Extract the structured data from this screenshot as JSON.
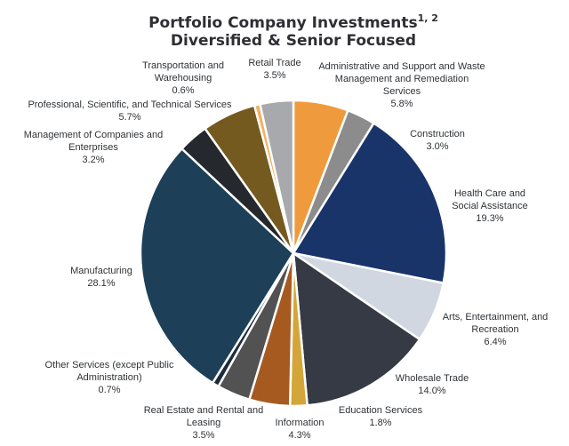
{
  "chart_data": {
    "type": "pie",
    "title_line1": "Portfolio Company Investments",
    "title_sup": "1, 2",
    "title_line2": "Diversified & Senior Focused",
    "slices": [
      {
        "name": "Administrative and Support and Waste Management and Remediation Services",
        "value": 5.8,
        "label": "5.8%",
        "color": "#ef9a3c"
      },
      {
        "name": "Construction",
        "value": 3.0,
        "label": "3.0%",
        "color": "#8c8c8c"
      },
      {
        "name": "Health Care and Social Assistance",
        "value": 19.3,
        "label": "19.3%",
        "color": "#183468"
      },
      {
        "name": "Arts, Entertainment, and Recreation",
        "value": 6.4,
        "label": "6.4%",
        "color": "#d0d7e1"
      },
      {
        "name": "Wholesale Trade",
        "value": 14.0,
        "label": "14.0%",
        "color": "#363a45"
      },
      {
        "name": "Education Services",
        "value": 1.8,
        "label": "1.8%",
        "color": "#d4a63a"
      },
      {
        "name": "Information",
        "value": 4.3,
        "label": "4.3%",
        "color": "#a65a20"
      },
      {
        "name": "Real Estate and Rental and Leasing",
        "value": 3.5,
        "label": "3.5%",
        "color": "#525252"
      },
      {
        "name": "Other Services (except Public Administration)",
        "value": 0.7,
        "label": "0.7%",
        "color": "#1e2b3c"
      },
      {
        "name": "Manufacturing",
        "value": 28.1,
        "label": "28.1%",
        "color": "#1d3f57"
      },
      {
        "name": "Management of Companies and Enterprises",
        "value": 3.2,
        "label": "3.2%",
        "color": "#25282d"
      },
      {
        "name": "Professional, Scientific, and Technical Services",
        "value": 5.7,
        "label": "5.7%",
        "color": "#745a1e"
      },
      {
        "name": "Transportation and Warehousing",
        "value": 0.6,
        "label": "0.6%",
        "color": "#f4b160"
      },
      {
        "name": "Retail Trade",
        "value": 3.5,
        "label": "3.5%",
        "color": "#a7a9ad"
      }
    ],
    "labels": [
      {
        "lines": [
          "Administrative and Support and Waste",
          "Management and Remediation",
          "Services"
        ],
        "pct": "5.8%"
      },
      {
        "lines": [
          "Construction"
        ],
        "pct": "3.0%"
      },
      {
        "lines": [
          "Health Care and",
          "Social Assistance"
        ],
        "pct": "19.3%"
      },
      {
        "lines": [
          "Arts, Entertainment, and",
          "Recreation"
        ],
        "pct": "6.4%"
      },
      {
        "lines": [
          "Wholesale Trade"
        ],
        "pct": "14.0%"
      },
      {
        "lines": [
          "Education Services"
        ],
        "pct": "1.8%"
      },
      {
        "lines": [
          "Information"
        ],
        "pct": "4.3%"
      },
      {
        "lines": [
          "Real Estate and Rental and",
          "Leasing"
        ],
        "pct": "3.5%"
      },
      {
        "lines": [
          "Other Services (except Public",
          "Administration)"
        ],
        "pct": "0.7%"
      },
      {
        "lines": [
          "Manufacturing"
        ],
        "pct": "28.1%"
      },
      {
        "lines": [
          "Management of Companies and",
          "Enterprises"
        ],
        "pct": "3.2%"
      },
      {
        "lines": [
          "Professional, Scientific, and Technical Services"
        ],
        "pct": "5.7%"
      },
      {
        "lines": [
          "Transportation and",
          "Warehousing"
        ],
        "pct": "0.6%"
      },
      {
        "lines": [
          "Retail Trade"
        ],
        "pct": "3.5%"
      }
    ]
  }
}
